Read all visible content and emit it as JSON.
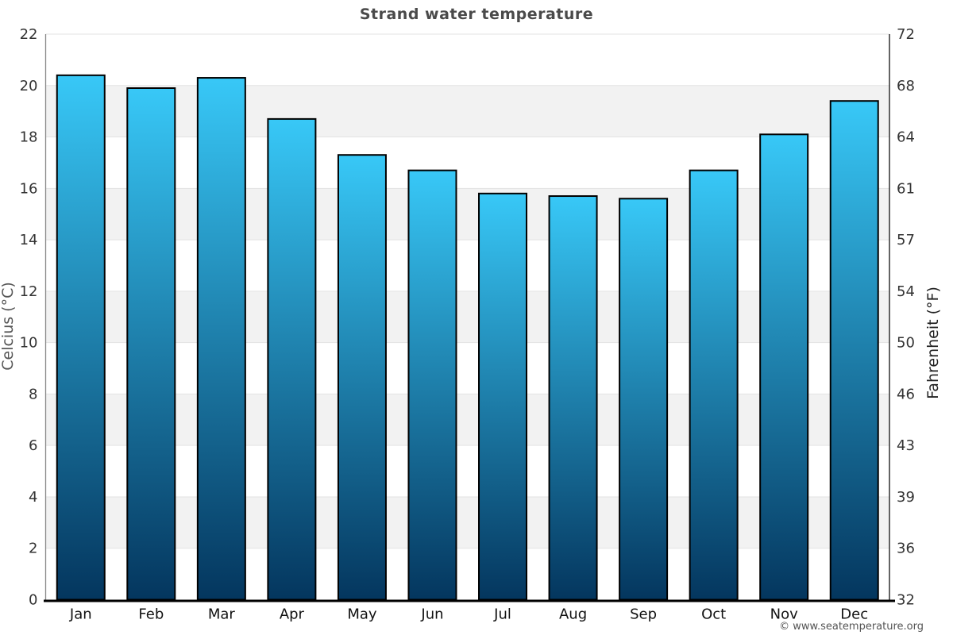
{
  "header": {
    "title": "Strand water temperature"
  },
  "footer": {
    "copyright": "© www.seatemperature.org"
  },
  "chart_data": {
    "type": "bar",
    "title": "Strand water temperature",
    "categories": [
      "Jan",
      "Feb",
      "Mar",
      "Apr",
      "May",
      "Jun",
      "Jul",
      "Aug",
      "Sep",
      "Oct",
      "Nov",
      "Dec"
    ],
    "values": [
      20.4,
      19.9,
      20.3,
      18.7,
      17.3,
      16.7,
      15.8,
      15.7,
      15.6,
      16.7,
      18.1,
      19.4
    ],
    "xlabel": "",
    "ylabel": "Celcius (°C)",
    "y2label": "Fahrenheit (°F)",
    "ylim": [
      0,
      22
    ],
    "yticks": [
      0,
      2,
      4,
      6,
      8,
      10,
      12,
      14,
      16,
      18,
      20,
      22
    ],
    "y2tick_labels": [
      "32",
      "36",
      "39",
      "43",
      "46",
      "50",
      "54",
      "57",
      "61",
      "64",
      "68",
      "72"
    ],
    "legend": "none",
    "grid": "horizontal-alternating-bands",
    "colors": {
      "bar_top": "#38C8F7",
      "bar_bottom": "#04365E",
      "bar_stroke": "#000000",
      "band": "#F2F2F2",
      "gridline": "#E3E3E3",
      "axis_left": "#888888",
      "axis_right": "#111111",
      "axis_bottom": "#000000",
      "title": "#4A4A4A",
      "tick_label": "#333333",
      "month_label": "#111111",
      "ylabel_left": "#555555",
      "ylabel_right": "#222222",
      "copyright": "#555555"
    }
  }
}
